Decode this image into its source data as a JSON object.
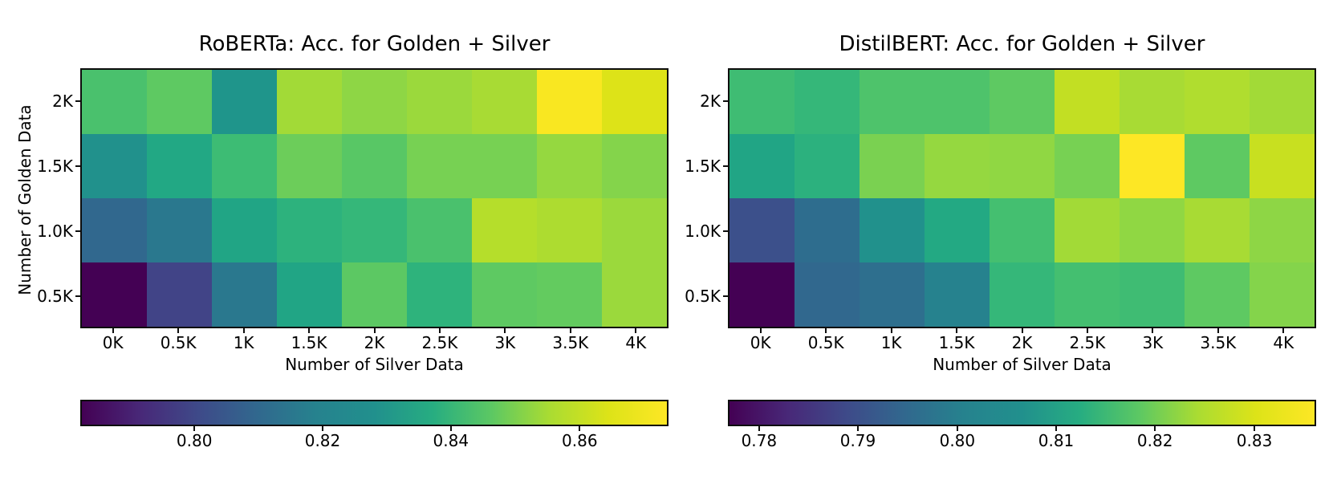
{
  "figure": {
    "background": "#ffffff",
    "colormap_name": "viridis",
    "viridis_stops": [
      "#440154",
      "#482878",
      "#3e4a89",
      "#31688e",
      "#26828e",
      "#21908d",
      "#27ad81",
      "#5cc863",
      "#aadc32",
      "#dde318",
      "#fde725"
    ]
  },
  "chart_data": [
    {
      "type": "heatmap",
      "title": "RoBERTa: Acc. for Golden + Silver",
      "xlabel": "Number of Silver Data",
      "ylabel": "Number of Golden Data",
      "x_categories": [
        "0K",
        "0.5K",
        "1K",
        "1.5K",
        "2K",
        "2.5K",
        "3K",
        "3.5K",
        "4K"
      ],
      "y_categories": [
        "2K",
        "1.5K",
        "1.0K",
        "0.5K"
      ],
      "values": [
        [
          0.843,
          0.847,
          0.829,
          0.857,
          0.854,
          0.857,
          0.858,
          0.872,
          0.865
        ],
        [
          0.828,
          0.834,
          0.841,
          0.849,
          0.845,
          0.851,
          0.851,
          0.856,
          0.853
        ],
        [
          0.81,
          0.814,
          0.833,
          0.837,
          0.839,
          0.843,
          0.86,
          0.859,
          0.857
        ],
        [
          0.782,
          0.798,
          0.814,
          0.833,
          0.846,
          0.837,
          0.847,
          0.848,
          0.857
        ]
      ],
      "cell_colors": [
        [
          "#4ac16d",
          "#5ec962",
          "#1f958b",
          "#a2da37",
          "#8ed645",
          "#9bd93c",
          "#a8db34",
          "#f9e721",
          "#dde318"
        ],
        [
          "#21918c",
          "#22a884",
          "#3dbc74",
          "#6ccd5a",
          "#58c765",
          "#77d153",
          "#77d153",
          "#95d840",
          "#84d44b"
        ],
        [
          "#31688e",
          "#2a788e",
          "#21a585",
          "#2db27d",
          "#35b779",
          "#4ac16d",
          "#b5de2b",
          "#addc30",
          "#9bd93c"
        ],
        [
          "#440154",
          "#414487",
          "#2a788e",
          "#21a585",
          "#5cc863",
          "#2eb37c",
          "#5ec962",
          "#63cb5f",
          "#9bd93c"
        ]
      ],
      "colorbar": {
        "orientation": "horizontal",
        "vmin": 0.782,
        "vmax": 0.874,
        "tick_labels": [
          "0.80",
          "0.82",
          "0.84",
          "0.86"
        ],
        "tick_positions_pct": [
          19.4,
          41.2,
          63.0,
          84.9
        ]
      }
    },
    {
      "type": "heatmap",
      "title": "DistilBERT: Acc. for Golden + Silver",
      "xlabel": "Number of Silver Data",
      "ylabel": "",
      "x_categories": [
        "0K",
        "0.5K",
        "1K",
        "1.5K",
        "2K",
        "2.5K",
        "3K",
        "3.5K",
        "4K"
      ],
      "y_categories": [
        "2K",
        "1.5K",
        "1.0K",
        "0.5K"
      ],
      "values": [
        [
          0.815,
          0.814,
          0.817,
          0.817,
          0.819,
          0.828,
          0.826,
          0.827,
          0.825
        ],
        [
          0.809,
          0.812,
          0.822,
          0.824,
          0.824,
          0.821,
          0.836,
          0.819,
          0.829
        ],
        [
          0.79,
          0.796,
          0.807,
          0.81,
          0.816,
          0.825,
          0.824,
          0.826,
          0.823
        ],
        [
          0.777,
          0.795,
          0.797,
          0.8,
          0.814,
          0.816,
          0.815,
          0.819,
          0.822
        ]
      ],
      "cell_colors": [
        [
          "#3fbc73",
          "#35b779",
          "#4ec36b",
          "#4ec36b",
          "#5ec962",
          "#c2df23",
          "#a8db34",
          "#b0dd2f",
          "#a2da37"
        ],
        [
          "#21a585",
          "#2cb17e",
          "#7ad151",
          "#95d840",
          "#90d743",
          "#77d153",
          "#fde725",
          "#5ec962",
          "#c8e020"
        ],
        [
          "#3c508b",
          "#2e6d8e",
          "#21918c",
          "#23a983",
          "#44bf70",
          "#a2da37",
          "#90d743",
          "#a8db34",
          "#8ed645"
        ],
        [
          "#440154",
          "#31688e",
          "#2e6f8e",
          "#26828e",
          "#35b779",
          "#44bf70",
          "#3fbc73",
          "#5ec962",
          "#84d44b"
        ]
      ],
      "colorbar": {
        "orientation": "horizontal",
        "vmin": 0.777,
        "vmax": 0.836,
        "tick_labels": [
          "0.78",
          "0.79",
          "0.80",
          "0.81",
          "0.82",
          "0.83"
        ],
        "tick_positions_pct": [
          5.3,
          22.1,
          39.0,
          55.8,
          72.6,
          89.5
        ]
      }
    }
  ]
}
